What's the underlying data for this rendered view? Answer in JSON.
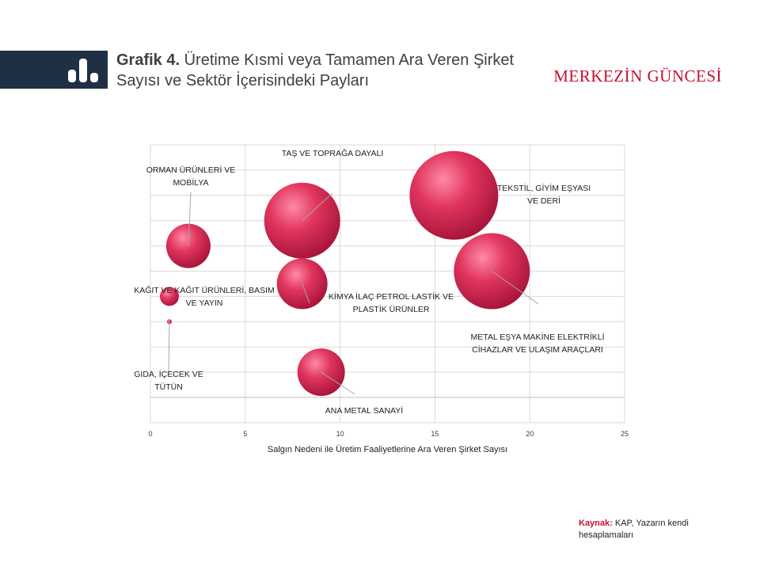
{
  "header": {
    "title_bold": "Grafik 4.",
    "title_rest": "Üretime Kısmi veya Tamamen Ara Veren Şirket Sayısı ve Sektör İçerisindeki Payları",
    "brand": "MERKEZİN GÜNCESİ",
    "brand_color": "#c8102e",
    "icon": "bar-chart-icon"
  },
  "source": {
    "label": "Kaynak:",
    "text": "KAP, Yazarın kendi hesaplamaları"
  },
  "chart_data": {
    "type": "scatter",
    "variant": "bubble",
    "title": "",
    "xlabel": "Salgın Nedeni ile Üretim Faaliyetlerine Ara Veren Şirket Sayısı",
    "ylabel": "",
    "xlim": [
      0,
      25
    ],
    "xticks": [
      "0",
      "5",
      "10",
      "15",
      "20",
      "25"
    ],
    "ylim": [
      0,
      10
    ],
    "grid": true,
    "bubble_color": "#e0355d",
    "points": [
      {
        "label": "GIDA, İÇECEK VE TÜTÜN",
        "x": 1,
        "y": 3,
        "size": 0.15
      },
      {
        "label": "KAĞIT VE KAĞIT ÜRÜNLERİ, BASIM VE YAYIN",
        "x": 1,
        "y": 4,
        "size": 0.6
      },
      {
        "label": "ORMAN ÜRÜNLERİ VE MOBİLYA",
        "x": 2,
        "y": 6,
        "size": 1.4
      },
      {
        "label": "TAŞ VE TOPRAĞA DAYALI",
        "x": 8,
        "y": 7,
        "size": 2.4
      },
      {
        "label": "KİMYA İLAÇ PETROL LASTİK VE PLASTİK ÜRÜNLER",
        "x": 8,
        "y": 4.5,
        "size": 1.6
      },
      {
        "label": "ANA METAL SANAYİ",
        "x": 9,
        "y": 1,
        "size": 1.5
      },
      {
        "label": "TEKSTİL, GİYİM EŞYASI VE DERİ",
        "x": 16,
        "y": 8,
        "size": 2.8
      },
      {
        "label": "METAL EŞYA MAKİNE ELEKTRİKLİ CİHAZLAR VE ULAŞIM ARAÇLARI",
        "x": 18,
        "y": 5,
        "size": 2.4
      }
    ]
  }
}
